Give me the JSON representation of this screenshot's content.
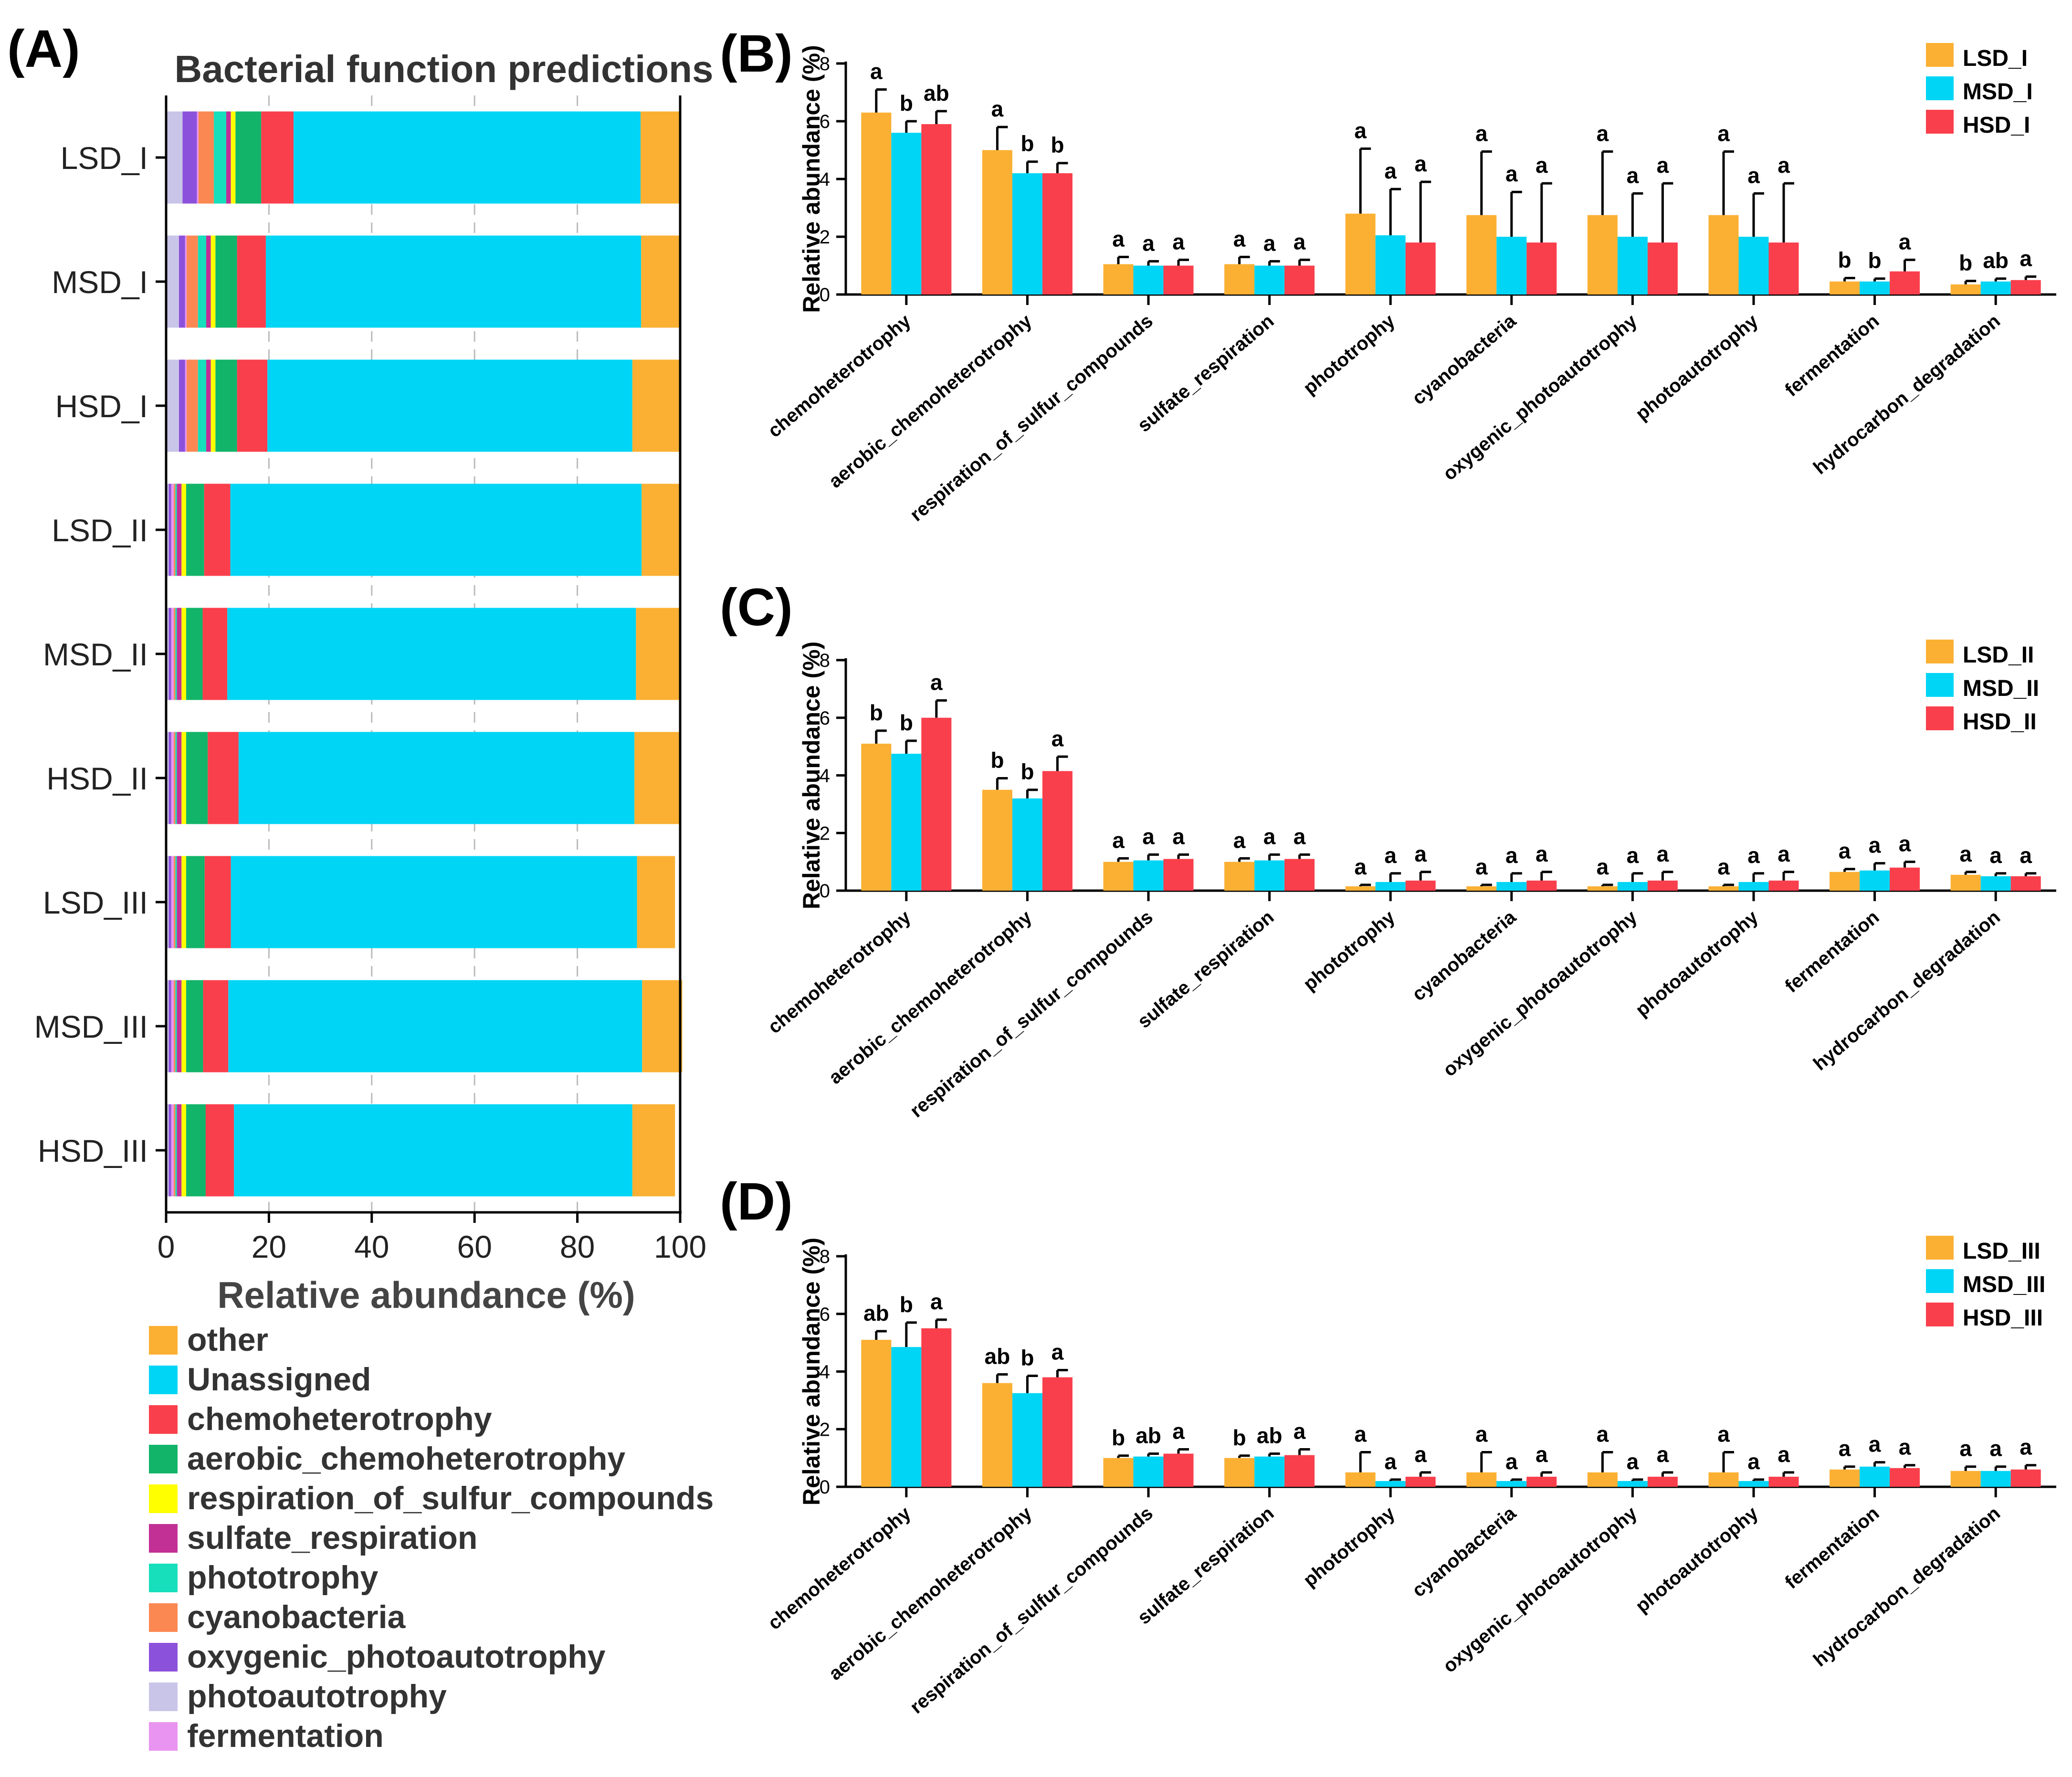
{
  "panel_labels": {
    "a": "(A)",
    "b": "(B)",
    "c": "(C)",
    "d": "(D)"
  },
  "colors": {
    "other": "#FBB033",
    "Unassigned": "#00D5F5",
    "chemoheterotrophy": "#FA3F4C",
    "aerobic_chemoheterotrophy": "#12B46A",
    "respiration_of_sulfur_compounds": "#FFFF00",
    "sulfate_respiration": "#C22F95",
    "phototrophy": "#17DEBB",
    "cyanobacteria": "#FB8852",
    "oxygenic_photoautotrophy": "#8C51DB",
    "photoautotrophy": "#C9C5E8",
    "fermentation": "#E994F0"
  },
  "chart_data": [
    {
      "id": "A",
      "type": "bar",
      "orientation": "horizontal",
      "stacked": true,
      "title": "Bacterial function predictions",
      "xlabel": "Relative abundance (%)",
      "ylabel": "",
      "xlim": [
        0,
        100
      ],
      "xticks": [
        0,
        20,
        40,
        60,
        80,
        100
      ],
      "grid": "vertical dashed",
      "categories": [
        "LSD_I",
        "MSD_I",
        "HSD_I",
        "LSD_II",
        "MSD_II",
        "HSD_II",
        "LSD_III",
        "MSD_III",
        "HSD_III"
      ],
      "series": [
        {
          "name": "photoautotrophy",
          "values": [
            3.2,
            2.5,
            2.5,
            0.5,
            0.5,
            0.5,
            0.5,
            0.5,
            0.5
          ]
        },
        {
          "name": "oxygenic_photoautotrophy",
          "values": [
            2.8,
            1.2,
            1.2,
            0.5,
            0.5,
            0.5,
            0.5,
            0.5,
            0.5
          ]
        },
        {
          "name": "fermentation",
          "values": [
            0.3,
            0.3,
            0.3,
            0.5,
            0.5,
            0.5,
            0.5,
            0.5,
            0.5
          ]
        },
        {
          "name": "cyanobacteria",
          "values": [
            3.0,
            2.2,
            2.2,
            0.3,
            0.3,
            0.3,
            0.3,
            0.3,
            0.3
          ]
        },
        {
          "name": "phototrophy",
          "values": [
            2.4,
            1.6,
            1.6,
            0.3,
            0.3,
            0.3,
            0.3,
            0.3,
            0.3
          ]
        },
        {
          "name": "sulfate_respiration",
          "values": [
            0.9,
            0.9,
            0.9,
            0.9,
            0.9,
            0.9,
            0.9,
            0.9,
            0.9
          ]
        },
        {
          "name": "respiration_of_sulfur_compounds",
          "values": [
            0.9,
            0.9,
            0.9,
            0.9,
            0.9,
            0.9,
            0.9,
            0.9,
            0.9
          ]
        },
        {
          "name": "aerobic_chemoheterotrophy",
          "values": [
            5.0,
            4.2,
            4.2,
            3.5,
            3.2,
            4.2,
            3.6,
            3.3,
            3.8
          ]
        },
        {
          "name": "chemoheterotrophy",
          "values": [
            6.3,
            5.6,
            5.9,
            5.1,
            4.8,
            6.0,
            5.1,
            4.9,
            5.5
          ]
        },
        {
          "name": "Unassigned",
          "values": [
            67.5,
            73.0,
            71.0,
            80.0,
            79.5,
            77.0,
            79.0,
            80.5,
            77.5
          ]
        },
        {
          "name": "other",
          "values": [
            7.7,
            7.6,
            9.3,
            7.5,
            8.6,
            8.9,
            7.4,
            7.8,
            8.3
          ]
        }
      ],
      "legend": {
        "placement": "bottom",
        "items": [
          "other",
          "Unassigned",
          "chemoheterotrophy",
          "aerobic_chemoheterotrophy",
          "respiration_of_sulfur_compounds",
          "sulfate_respiration",
          "phototrophy",
          "cyanobacteria",
          "oxygenic_photoautotrophy",
          "photoautotrophy",
          "fermentation"
        ]
      }
    },
    {
      "id": "B",
      "type": "bar",
      "ylabel": "Relative abundance (%)",
      "xlabel": "",
      "ylim": [
        0,
        8
      ],
      "yticks": [
        0,
        2,
        4,
        6,
        8
      ],
      "categories": [
        "chemoheterotrophy",
        "aerobic_chemoheterotrophy",
        "respiration_of_sulfur_compounds",
        "sulfate_respiration",
        "phototrophy",
        "cyanobacteria",
        "oxygenic_photoautotrophy",
        "photoautotrophy",
        "fermentation",
        "hydrocarbon_degradation"
      ],
      "legend_placement": "top-right",
      "series": [
        {
          "name": "LSD_I",
          "color": "#FBB033",
          "values": [
            6.3,
            5.0,
            1.05,
            1.05,
            2.8,
            2.75,
            2.75,
            2.75,
            0.45,
            0.35
          ],
          "errors": [
            0.8,
            0.8,
            0.25,
            0.25,
            2.25,
            2.2,
            2.2,
            2.2,
            0.12,
            0.12
          ],
          "letters": [
            "a",
            "a",
            "a",
            "a",
            "a",
            "a",
            "a",
            "a",
            "b",
            "b"
          ]
        },
        {
          "name": "MSD_I",
          "color": "#00D5F5",
          "values": [
            5.6,
            4.2,
            1.0,
            1.0,
            2.05,
            2.0,
            2.0,
            2.0,
            0.45,
            0.45
          ],
          "errors": [
            0.4,
            0.4,
            0.15,
            0.15,
            1.6,
            1.55,
            1.5,
            1.5,
            0.1,
            0.1
          ],
          "letters": [
            "b",
            "b",
            "a",
            "a",
            "a",
            "a",
            "a",
            "a",
            "b",
            "ab"
          ]
        },
        {
          "name": "HSD_I",
          "color": "#FA3F4C",
          "values": [
            5.9,
            4.2,
            1.0,
            1.0,
            1.8,
            1.8,
            1.8,
            1.8,
            0.8,
            0.5
          ],
          "errors": [
            0.45,
            0.35,
            0.2,
            0.2,
            2.1,
            2.05,
            2.05,
            2.05,
            0.4,
            0.12
          ],
          "letters": [
            "ab",
            "b",
            "a",
            "a",
            "a",
            "a",
            "a",
            "a",
            "a",
            "a"
          ]
        }
      ]
    },
    {
      "id": "C",
      "type": "bar",
      "ylabel": "Relative abundance (%)",
      "xlabel": "",
      "ylim": [
        0,
        8
      ],
      "yticks": [
        0,
        2,
        4,
        6,
        8
      ],
      "categories": [
        "chemoheterotrophy",
        "aerobic_chemoheterotrophy",
        "respiration_of_sulfur_compounds",
        "sulfate_respiration",
        "phototrophy",
        "cyanobacteria",
        "oxygenic_photoautotrophy",
        "photoautotrophy",
        "fermentation",
        "hydrocarbon_degradation"
      ],
      "legend_placement": "top-right",
      "series": [
        {
          "name": "LSD_II",
          "color": "#FBB033",
          "values": [
            5.1,
            3.5,
            1.0,
            1.0,
            0.15,
            0.15,
            0.15,
            0.15,
            0.65,
            0.55
          ],
          "errors": [
            0.45,
            0.4,
            0.12,
            0.12,
            0.05,
            0.05,
            0.05,
            0.05,
            0.1,
            0.1
          ],
          "letters": [
            "b",
            "b",
            "a",
            "a",
            "a",
            "a",
            "a",
            "a",
            "a",
            "a"
          ]
        },
        {
          "name": "MSD_II",
          "color": "#00D5F5",
          "values": [
            4.75,
            3.2,
            1.05,
            1.05,
            0.3,
            0.3,
            0.3,
            0.3,
            0.7,
            0.5
          ],
          "errors": [
            0.45,
            0.3,
            0.2,
            0.2,
            0.3,
            0.3,
            0.3,
            0.3,
            0.25,
            0.1
          ],
          "letters": [
            "b",
            "b",
            "a",
            "a",
            "a",
            "a",
            "a",
            "a",
            "a",
            "a"
          ]
        },
        {
          "name": "HSD_II",
          "color": "#FA3F4C",
          "values": [
            6.0,
            4.15,
            1.1,
            1.1,
            0.35,
            0.35,
            0.35,
            0.35,
            0.8,
            0.5
          ],
          "errors": [
            0.6,
            0.5,
            0.15,
            0.15,
            0.3,
            0.3,
            0.3,
            0.3,
            0.2,
            0.1
          ],
          "letters": [
            "a",
            "a",
            "a",
            "a",
            "a",
            "a",
            "a",
            "a",
            "a",
            "a"
          ]
        }
      ]
    },
    {
      "id": "D",
      "type": "bar",
      "ylabel": "Relative abundance (%)",
      "xlabel": "",
      "ylim": [
        0,
        8
      ],
      "yticks": [
        0,
        2,
        4,
        6,
        8
      ],
      "categories": [
        "chemoheterotrophy",
        "aerobic_chemoheterotrophy",
        "respiration_of_sulfur_compounds",
        "sulfate_respiration",
        "phototrophy",
        "cyanobacteria",
        "oxygenic_photoautotrophy",
        "photoautotrophy",
        "fermentation",
        "hydrocarbon_degradation"
      ],
      "legend_placement": "top-right",
      "series": [
        {
          "name": "LSD_III",
          "color": "#FBB033",
          "values": [
            5.1,
            3.6,
            1.0,
            1.0,
            0.5,
            0.5,
            0.5,
            0.5,
            0.6,
            0.55
          ],
          "errors": [
            0.3,
            0.3,
            0.08,
            0.08,
            0.7,
            0.7,
            0.7,
            0.7,
            0.1,
            0.15
          ],
          "letters": [
            "ab",
            "ab",
            "b",
            "b",
            "a",
            "a",
            "a",
            "a",
            "a",
            "a"
          ]
        },
        {
          "name": "MSD_III",
          "color": "#00D5F5",
          "values": [
            4.85,
            3.25,
            1.05,
            1.05,
            0.2,
            0.2,
            0.2,
            0.2,
            0.7,
            0.55
          ],
          "errors": [
            0.85,
            0.6,
            0.1,
            0.1,
            0.05,
            0.05,
            0.05,
            0.05,
            0.15,
            0.15
          ],
          "letters": [
            "b",
            "b",
            "ab",
            "ab",
            "a",
            "a",
            "a",
            "a",
            "a",
            "a"
          ]
        },
        {
          "name": "HSD_III",
          "color": "#FA3F4C",
          "values": [
            5.5,
            3.8,
            1.15,
            1.1,
            0.35,
            0.35,
            0.35,
            0.35,
            0.65,
            0.6
          ],
          "errors": [
            0.3,
            0.25,
            0.15,
            0.2,
            0.15,
            0.15,
            0.15,
            0.15,
            0.1,
            0.15
          ],
          "letters": [
            "a",
            "a",
            "a",
            "a",
            "a",
            "a",
            "a",
            "a",
            "a",
            "a"
          ]
        }
      ]
    }
  ]
}
